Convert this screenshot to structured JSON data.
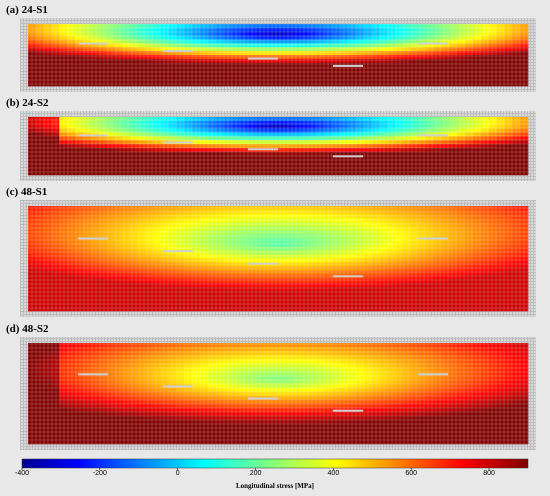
{
  "chart_data": {
    "type": "heatmap",
    "quantity": "Longitudinal stress",
    "unit": "MPa",
    "colorbar": {
      "label": "Longitudinal stress [MPa]",
      "ticks": [
        -400,
        -200,
        0,
        200,
        400,
        600,
        800
      ],
      "range": [
        -400,
        900
      ],
      "colormap": "jet"
    },
    "panels": [
      {
        "label": "(a) 24-S1",
        "min_stress": -400,
        "max_stress": 900,
        "low_region": "upper-center",
        "high_region": "bottom edges"
      },
      {
        "label": "(b) 24-S2",
        "min_stress": -400,
        "max_stress": 900,
        "low_region": "upper-center",
        "high_region": "bottom and left edges"
      },
      {
        "label": "(c) 48-S1",
        "min_stress": 100,
        "max_stress": 800,
        "low_region": "upper-center",
        "high_region": "bottom edge"
      },
      {
        "label": "(d) 48-S2",
        "min_stress": 150,
        "max_stress": 900,
        "low_region": "center",
        "high_region": "bottom and left edges"
      }
    ]
  }
}
